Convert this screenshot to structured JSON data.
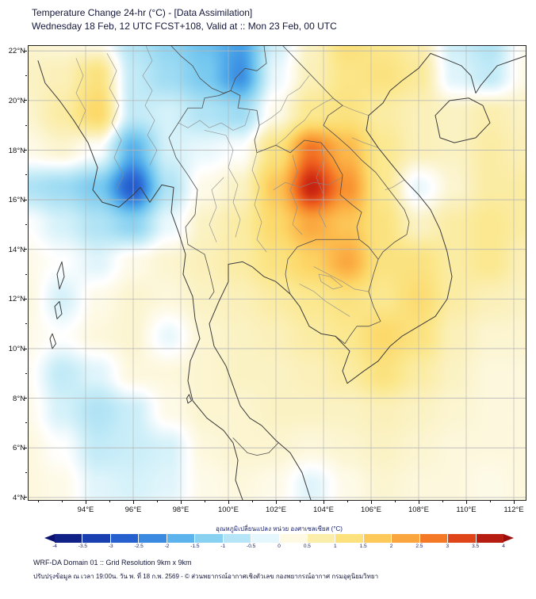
{
  "header": {
    "title_line1": "Temperature Change 24-hr (°C) - [Data Assimilation]",
    "title_line2": "Wednesday 18 Feb, 12 UTC FCST+108, Valid at :: Mon 23 Feb, 00 UTC"
  },
  "chart_data": {
    "type": "heatmap",
    "title": "Temperature Change 24-hr (°C) - [Data Assimilation]",
    "subtitle": "Wednesday 18 Feb, 12 UTC FCST+108, Valid at :: Mon 23 Feb, 00 UTC",
    "units": "°C",
    "x": {
      "label": "longitude",
      "range": [
        91.6,
        112.5
      ],
      "tick_values": [
        94,
        96,
        98,
        100,
        102,
        104,
        106,
        108,
        110,
        112
      ],
      "tick_labels": [
        "94°E",
        "96°E",
        "98°E",
        "100°E",
        "102°E",
        "104°E",
        "106°E",
        "108°E",
        "110°E",
        "112°E"
      ]
    },
    "y": {
      "label": "latitude",
      "range": [
        3.9,
        22.2
      ],
      "tick_values": [
        4,
        6,
        8,
        10,
        12,
        14,
        16,
        18,
        20,
        22
      ],
      "tick_labels": [
        "4°N",
        "6°N",
        "8°N",
        "10°N",
        "12°N",
        "14°N",
        "16°N",
        "18°N",
        "20°N",
        "22°N"
      ]
    },
    "grid": {
      "lons": [
        91.5,
        93,
        94.5,
        96,
        97.5,
        99,
        100.5,
        102,
        103.5,
        105,
        106.5,
        108,
        109.5,
        111,
        112.5
      ],
      "lats": [
        22.5,
        21,
        19.5,
        18,
        16.5,
        15,
        13.5,
        12,
        10.5,
        9,
        7.5,
        6,
        4.5,
        3
      ],
      "values": [
        [
          0.4,
          0.3,
          0.1,
          -0.8,
          -1.2,
          -1.6,
          -2.0,
          -0.5,
          0.5,
          1.3,
          1.0,
          0.7,
          -0.5,
          -0.8,
          0.1
        ],
        [
          0.5,
          0.6,
          1.2,
          -0.6,
          -1.0,
          -1.4,
          -2.2,
          -0.2,
          0.6,
          1.1,
          1.2,
          0.9,
          -0.3,
          -0.6,
          0.2
        ],
        [
          0.4,
          0.8,
          1.5,
          -0.6,
          -0.4,
          -0.8,
          -1.0,
          0.2,
          1.0,
          1.2,
          0.8,
          0.6,
          0.5,
          0.7,
          0.5
        ],
        [
          0.2,
          0.4,
          0.0,
          -1.8,
          -0.4,
          -0.2,
          0.0,
          1.2,
          2.8,
          2.0,
          1.0,
          0.6,
          0.5,
          0.8,
          0.6
        ],
        [
          -0.8,
          -1.0,
          -1.4,
          -2.8,
          -0.8,
          0.2,
          0.5,
          1.8,
          3.6,
          2.5,
          1.0,
          -0.2,
          0.4,
          0.8,
          0.8
        ],
        [
          0.0,
          -0.4,
          -0.8,
          -1.2,
          -0.2,
          0.5,
          0.8,
          1.5,
          2.2,
          1.8,
          1.2,
          0.5,
          0.8,
          1.0,
          0.8
        ],
        [
          0.2,
          0.0,
          -0.3,
          0.2,
          0.4,
          0.6,
          0.8,
          1.2,
          1.6,
          2.2,
          1.2,
          1.2,
          0.8,
          1.0,
          0.6
        ],
        [
          0.3,
          -0.4,
          0.2,
          0.4,
          0.3,
          0.5,
          0.6,
          0.8,
          1.0,
          1.2,
          1.0,
          1.4,
          0.8,
          0.6,
          0.5
        ],
        [
          0.2,
          0.0,
          0.3,
          0.4,
          -0.2,
          0.4,
          0.5,
          0.6,
          0.8,
          1.0,
          1.5,
          1.2,
          0.6,
          0.4,
          0.4
        ],
        [
          0.1,
          -0.6,
          -0.3,
          0.3,
          0.3,
          0.4,
          0.5,
          0.5,
          0.6,
          0.8,
          1.2,
          0.8,
          0.5,
          0.3,
          0.3
        ],
        [
          0.2,
          -0.4,
          -0.8,
          -0.5,
          0.2,
          0.4,
          0.4,
          0.5,
          0.5,
          0.5,
          0.6,
          0.5,
          0.4,
          0.3,
          0.3
        ],
        [
          0.3,
          0.0,
          -0.6,
          -0.5,
          -0.4,
          0.3,
          0.4,
          0.4,
          0.3,
          0.4,
          0.5,
          0.4,
          0.3,
          0.3,
          0.3
        ],
        [
          0.3,
          0.2,
          -0.3,
          -0.4,
          -0.3,
          0.2,
          0.3,
          0.2,
          -0.3,
          0.2,
          0.4,
          0.3,
          0.3,
          0.2,
          0.3
        ],
        [
          0.3,
          0.2,
          -0.2,
          -0.2,
          0.0,
          0.2,
          0.2,
          0.0,
          -0.2,
          0.2,
          0.3,
          0.3,
          0.3,
          0.2,
          0.3
        ]
      ]
    },
    "colormap": [
      [
        -4,
        "#0a1172"
      ],
      [
        -3.5,
        "#15309e"
      ],
      [
        -3,
        "#1d4ec4"
      ],
      [
        -2.5,
        "#2f72d9"
      ],
      [
        -2,
        "#47a2e8"
      ],
      [
        -1.5,
        "#72c6ef"
      ],
      [
        -1,
        "#9fdcf3"
      ],
      [
        -0.5,
        "#cbeef8"
      ],
      [
        0,
        "#ffffff"
      ],
      [
        0.25,
        "#fdf9e3"
      ],
      [
        0.5,
        "#fbf2c4"
      ],
      [
        1,
        "#fbe88f"
      ],
      [
        1.5,
        "#fcd96a"
      ],
      [
        2,
        "#fcb84a"
      ],
      [
        2.5,
        "#f89230"
      ],
      [
        3,
        "#ee5f1e"
      ],
      [
        3.5,
        "#d02b12"
      ],
      [
        4,
        "#9c0d0d"
      ]
    ],
    "legend_position": "bottom"
  },
  "colorbar": {
    "label": "อุณหภูมิเปลี่ยนแปลง หน่วย องศาเซลเซียส (°C)",
    "min": -4,
    "max": 4,
    "ticks": [
      "-4",
      "-3.5",
      "-3",
      "-2.5",
      "-2",
      "-1.5",
      "-1",
      "-0.5",
      "0",
      "0.5",
      "1",
      "1.5",
      "2",
      "2.5",
      "3",
      "3.5",
      "4"
    ]
  },
  "footer": {
    "line1": "WRF-DA Domain 01 :: Grid Resolution 9km x 9km",
    "line2": "ปรับปรุงข้อมูล ณ เวลา 19:00น. วัน พ. ที่ 18 ก.พ. 2569 - © ส่วนพยากรณ์อากาศเชิงตัวเลข กองพยากรณ์อากาศ กรมอุตุนิยมวิทยา"
  }
}
